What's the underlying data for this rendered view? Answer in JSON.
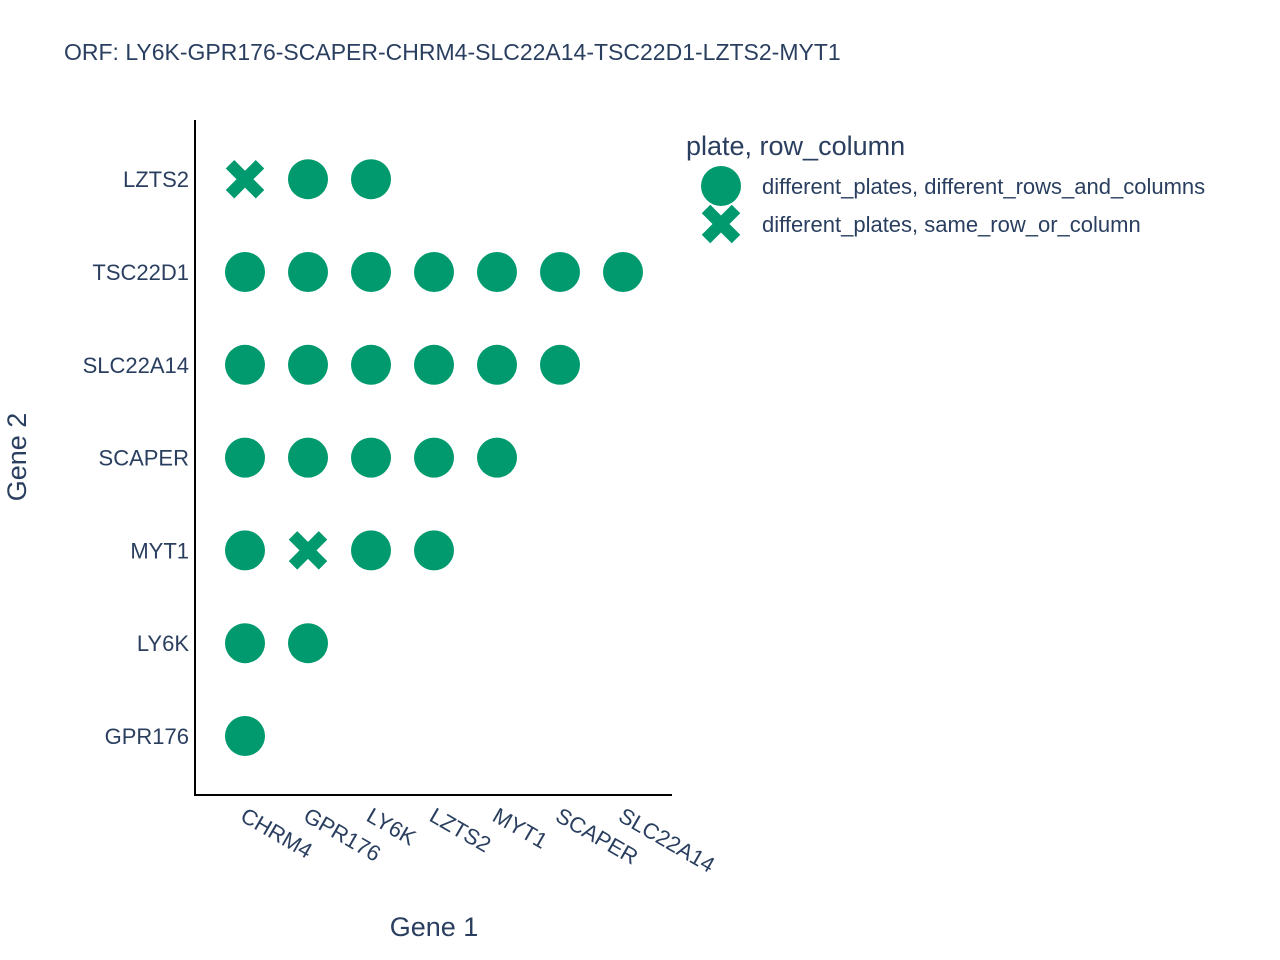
{
  "chart_data": {
    "type": "scatter",
    "title": "ORF: LY6K-GPR176-SCAPER-CHRM4-SLC22A14-TSC22D1-LZTS2-MYT1",
    "xlabel": "Gene 1",
    "ylabel": "Gene 2",
    "x_categories": [
      "CHRM4",
      "GPR176",
      "LY6K",
      "LZTS2",
      "MYT1",
      "SCAPER",
      "SLC22A14"
    ],
    "y_categories": [
      "GPR176",
      "LY6K",
      "MYT1",
      "SCAPER",
      "SLC22A14",
      "TSC22D1",
      "LZTS2"
    ],
    "legend_title": "plate, row_column",
    "legend_position": "top-right",
    "grid": false,
    "marker_color": "#009a6e",
    "series": [
      {
        "name": "different_plates, different_rows_and_columns",
        "symbol": "circle",
        "points": [
          {
            "x": "GPR176",
            "y": "LZTS2"
          },
          {
            "x": "LY6K",
            "y": "LZTS2"
          },
          {
            "x": "CHRM4",
            "y": "TSC22D1"
          },
          {
            "x": "GPR176",
            "y": "TSC22D1"
          },
          {
            "x": "LY6K",
            "y": "TSC22D1"
          },
          {
            "x": "LZTS2",
            "y": "TSC22D1"
          },
          {
            "x": "MYT1",
            "y": "TSC22D1"
          },
          {
            "x": "SCAPER",
            "y": "TSC22D1"
          },
          {
            "x": "SLC22A14",
            "y": "TSC22D1"
          },
          {
            "x": "CHRM4",
            "y": "SLC22A14"
          },
          {
            "x": "GPR176",
            "y": "SLC22A14"
          },
          {
            "x": "LY6K",
            "y": "SLC22A14"
          },
          {
            "x": "LZTS2",
            "y": "SLC22A14"
          },
          {
            "x": "MYT1",
            "y": "SLC22A14"
          },
          {
            "x": "SCAPER",
            "y": "SLC22A14"
          },
          {
            "x": "CHRM4",
            "y": "SCAPER"
          },
          {
            "x": "GPR176",
            "y": "SCAPER"
          },
          {
            "x": "LY6K",
            "y": "SCAPER"
          },
          {
            "x": "LZTS2",
            "y": "SCAPER"
          },
          {
            "x": "MYT1",
            "y": "SCAPER"
          },
          {
            "x": "CHRM4",
            "y": "MYT1"
          },
          {
            "x": "LY6K",
            "y": "MYT1"
          },
          {
            "x": "LZTS2",
            "y": "MYT1"
          },
          {
            "x": "CHRM4",
            "y": "LY6K"
          },
          {
            "x": "GPR176",
            "y": "LY6K"
          },
          {
            "x": "CHRM4",
            "y": "GPR176"
          }
        ]
      },
      {
        "name": "different_plates, same_row_or_column",
        "symbol": "x",
        "points": [
          {
            "x": "CHRM4",
            "y": "LZTS2"
          },
          {
            "x": "GPR176",
            "y": "MYT1"
          }
        ]
      }
    ]
  }
}
